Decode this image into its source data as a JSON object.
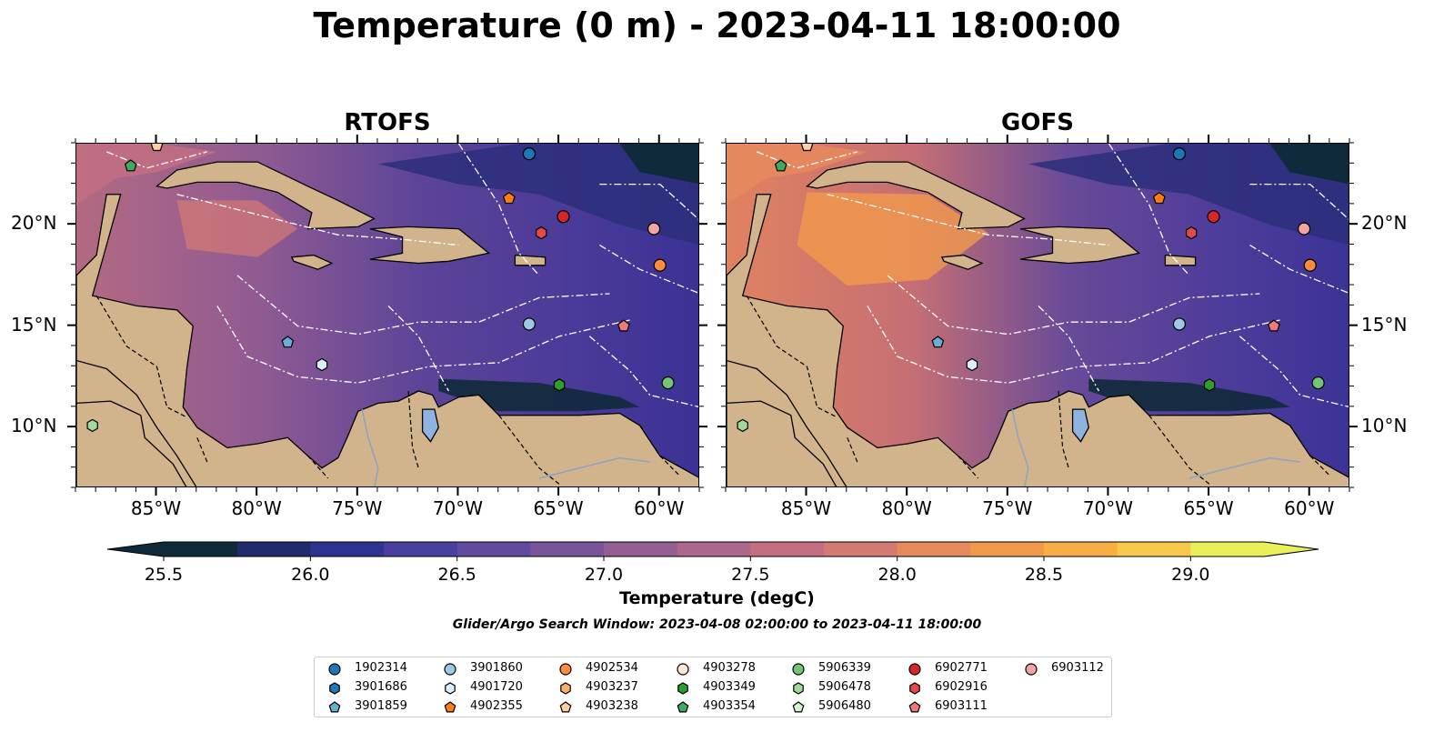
{
  "title": "Temperature (0 m) - 2023-04-11 18:00:00",
  "panels": [
    {
      "title": "RTOFS"
    },
    {
      "title": "GOFS"
    }
  ],
  "lon_ticks": [
    "85°W",
    "80°W",
    "75°W",
    "70°W",
    "65°W",
    "60°W"
  ],
  "lat_ticks": [
    "20°N",
    "15°N",
    "10°N"
  ],
  "map_extent": {
    "lon": [
      -89,
      -58
    ],
    "lat": [
      7,
      24
    ]
  },
  "colorbar": {
    "label": "Temperature (degC)",
    "ticks": [
      "25.5",
      "26.0",
      "26.5",
      "27.0",
      "27.5",
      "28.0",
      "28.5",
      "29.0"
    ],
    "range": [
      25.5,
      29.25
    ],
    "colors": [
      "#0f2a3a",
      "#1f2b6b",
      "#2e3590",
      "#483f9e",
      "#614b9e",
      "#7a5498",
      "#935e93",
      "#ab678c",
      "#c26f82",
      "#d57a73",
      "#e68a5e",
      "#f29a4c",
      "#f8ae45",
      "#f7c94a",
      "#e9ef57"
    ]
  },
  "search_window": "Glider/Argo Search Window: 2023-04-08 02:00:00 to 2023-04-11 18:00:00",
  "legend": [
    {
      "label": "1902314",
      "marker": "circle",
      "color": "#1f77b4"
    },
    {
      "label": "3901686",
      "marker": "hexagon",
      "color": "#1f77b4"
    },
    {
      "label": "3901859",
      "marker": "pentagon",
      "color": "#6aaed6"
    },
    {
      "label": "3901860",
      "marker": "circle",
      "color": "#9ecae1"
    },
    {
      "label": "4901720",
      "marker": "hexagon",
      "color": "#dbeefb"
    },
    {
      "label": "4902355",
      "marker": "pentagon",
      "color": "#ff7f0e"
    },
    {
      "label": "4902534",
      "marker": "circle",
      "color": "#fd8d3c"
    },
    {
      "label": "4903237",
      "marker": "hexagon",
      "color": "#fdae6b"
    },
    {
      "label": "4903238",
      "marker": "pentagon",
      "color": "#fdd0a2"
    },
    {
      "label": "4903278",
      "marker": "circle",
      "color": "#fde7d2"
    },
    {
      "label": "4903349",
      "marker": "hexagon",
      "color": "#2ca02c"
    },
    {
      "label": "4903354",
      "marker": "pentagon",
      "color": "#41ab5d"
    },
    {
      "label": "5906339",
      "marker": "circle",
      "color": "#74c476"
    },
    {
      "label": "5906478",
      "marker": "hexagon",
      "color": "#a1d99b"
    },
    {
      "label": "5906480",
      "marker": "pentagon",
      "color": "#d4f2cf"
    },
    {
      "label": "6902771",
      "marker": "circle",
      "color": "#d62728"
    },
    {
      "label": "6902916",
      "marker": "hexagon",
      "color": "#e34a4a"
    },
    {
      "label": "6903111",
      "marker": "pentagon",
      "color": "#f0797a"
    },
    {
      "label": "6903112",
      "marker": "circle",
      "color": "#f4a3a3"
    }
  ],
  "floats": [
    {
      "marker": "circle",
      "color": "#1f77b4",
      "lon": -66.5,
      "lat": 23.5
    },
    {
      "marker": "pentagon",
      "color": "#ff7f0e",
      "lon": -67.5,
      "lat": 21.3
    },
    {
      "marker": "circle",
      "color": "#d62728",
      "lon": -64.8,
      "lat": 20.4
    },
    {
      "marker": "hexagon",
      "color": "#e34a4a",
      "lon": -65.9,
      "lat": 19.6
    },
    {
      "marker": "circle",
      "color": "#f4a3a3",
      "lon": -60.3,
      "lat": 19.8
    },
    {
      "marker": "circle",
      "color": "#fd8d3c",
      "lon": -60.0,
      "lat": 18.0
    },
    {
      "marker": "circle",
      "color": "#9ecae1",
      "lon": -66.5,
      "lat": 15.1
    },
    {
      "marker": "pentagon",
      "color": "#f0797a",
      "lon": -61.8,
      "lat": 15.0
    },
    {
      "marker": "pentagon",
      "color": "#6aaed6",
      "lon": -78.5,
      "lat": 14.2
    },
    {
      "marker": "hexagon",
      "color": "#dbeefb",
      "lon": -76.8,
      "lat": 13.1
    },
    {
      "marker": "hexagon",
      "color": "#2ca02c",
      "lon": -65.0,
      "lat": 12.1
    },
    {
      "marker": "circle",
      "color": "#74c476",
      "lon": -59.6,
      "lat": 12.2
    },
    {
      "marker": "pentagon",
      "color": "#41ab5d",
      "lon": -86.3,
      "lat": 22.9
    },
    {
      "marker": "hexagon",
      "color": "#a1d99b",
      "lon": -88.2,
      "lat": 10.1
    },
    {
      "marker": "pentagon",
      "color": "#fdd0a2",
      "lon": -85.0,
      "lat": 23.9
    }
  ]
}
